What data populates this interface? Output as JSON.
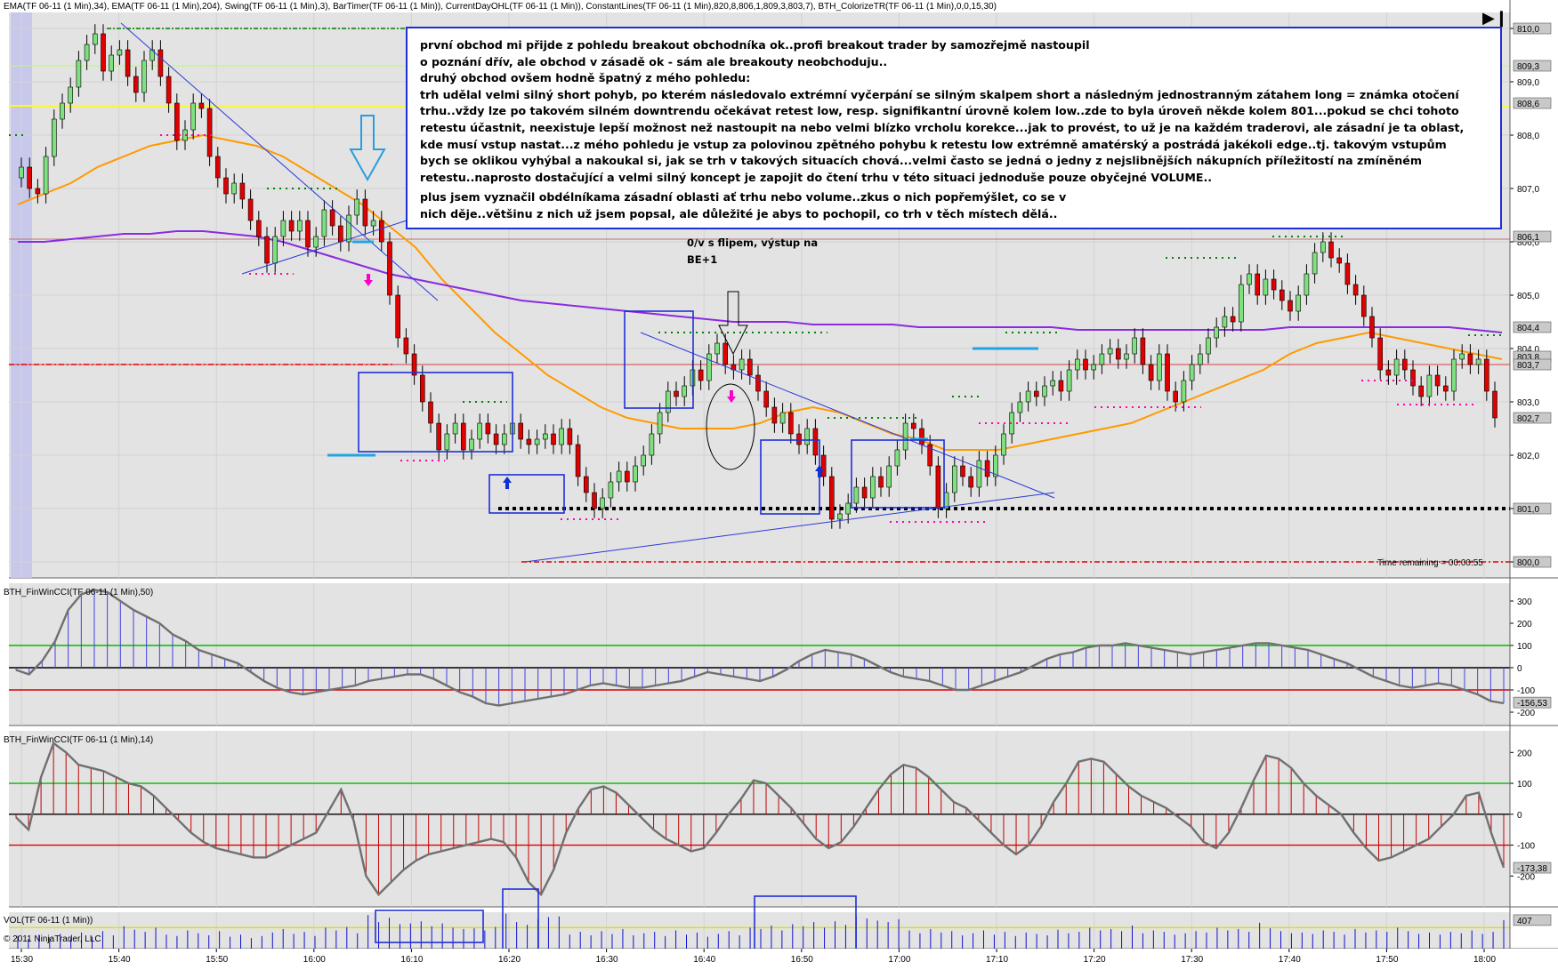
{
  "header": {
    "indicator_line": "EMA(TF 06-11 (1 Min),34), EMA(TF 06-11 (1 Min),204), Swing(TF 06-11 (1 Min),3), BarTimer(TF 06-11 (1 Min)), CurrentDayOHL(TF 06-11 (1 Min)), ConstantLines(TF 06-11 (1 Min),820,8,806,1,809,3,803,7), BTH_ColorizeTR(TF 06-11 (1 Min),0,0,15,30)"
  },
  "note": {
    "lines": [
      "první obchod mi přijde z pohledu breakout obchodníka ok..profi breakout trader by samozřejmě nastoupil",
      "o poznání dřív, ale obchod v zásadě ok - sám ale breakouty neobchoduju..",
      "druhý obchod ovšem hodně špatný z mého pohledu:",
      "trh udělal velmi silný short pohyb, po kterém následovalo extrémní vyčerpání se silným skalpem short a následným jednostranným zátahem long = známka otočení",
      "trhu..vždy lze po takovém silném downtrendu očekávat retest low, resp. signifikantní úrovně kolem low..zde to byla úroveň někde kolem 801...pokud se chci tohoto",
      "retestu účastnit, neexistuje lepší možnost než nastoupit na nebo velmi blízko vrcholu korekce...jak to provést, to už je na každém traderovi, ale zásadní je ta oblast,",
      "kde musí vstup nastat...z mého pohledu je vstup za polovinou zpětného pohybu k retestu low extrémně amatérský a postrádá jakékoli edge..tj. takovým vstupům",
      "bych se oklikou vyhýbal a nakoukal si, jak se trh v takových situacích chová...velmi často se jedná o jedny z nejslibnějších nákupních příležitostí na zmíněném",
      "retestu..naprosto dostačující a velmi silný koncept je zapojit do čtení trhu v této situaci jednoduše pouze obyčejné VOLUME.."
    ],
    "lines2": [
      "plus jsem vyznačil obdélníkama zásadní oblasti ať trhu nebo volume..zkus o nich popřemýšlet, co se v",
      "nich děje..většinu z nich už jsem popsal, ale důležité je abys to pochopil, co trh v těch místech dělá.."
    ]
  },
  "annotation": {
    "line1": "0/v s flipem, výstup na",
    "line2": "BE+1"
  },
  "time_remaining": "Time remaining = 00:00:55",
  "copyright": "© 2011 NinjaTrader, LLC",
  "panels": {
    "cci50_title": "BTH_FinWinCCI(TF 06-11 (1 Min),50)",
    "cci14_title": "BTH_FinWinCCI(TF 06-11 (1 Min),14)",
    "vol_title": "VOL(TF 06-11 (1 Min))"
  },
  "chart_data": [
    {
      "type": "candlestick",
      "ylim": [
        799.7,
        810.3
      ],
      "y_ticks": [
        "810,0",
        "809,0",
        "808,0",
        "807,0",
        "806,0",
        "805,0",
        "804,0",
        "803,0",
        "802,0",
        "801,0",
        "800,0"
      ],
      "y_tick_values": [
        810,
        809,
        808,
        807,
        806,
        805,
        804,
        803,
        802,
        801,
        800
      ],
      "price_badges": [
        {
          "label": "810,0",
          "value": 810.0,
          "color": "#c9c9c9"
        },
        {
          "label": "809,3",
          "value": 809.3,
          "color": "#c9c9c9"
        },
        {
          "label": "808,6",
          "value": 808.6,
          "color": "#c9c9c9"
        },
        {
          "label": "806,1",
          "value": 806.1,
          "color": "#c9c9c9"
        },
        {
          "label": "804,4",
          "value": 804.4,
          "color": "#c9c9c9"
        },
        {
          "label": "803,8",
          "value": 803.85,
          "color": "#c9c9c9"
        },
        {
          "label": "803,7",
          "value": 803.7,
          "color": "#c9c9c9"
        },
        {
          "label": "802,7",
          "value": 802.7,
          "color": "#c9c9c9"
        },
        {
          "label": "801,0",
          "value": 801.0,
          "color": "#c9c9c9"
        },
        {
          "label": "800,0",
          "value": 800.0,
          "color": "#c9c9c9"
        }
      ],
      "x_ticks": [
        "15:30",
        "15:40",
        "15:50",
        "16:00",
        "16:10",
        "16:20",
        "16:30",
        "16:40",
        "16:50",
        "17:00",
        "17:10",
        "17:20",
        "17:30",
        "17:40",
        "17:50",
        "18:00"
      ],
      "bar_colors": {
        "up": "#7fe07f",
        "down": "#e00000"
      },
      "closes": [
        807.4,
        807.0,
        806.9,
        807.6,
        808.3,
        808.6,
        808.9,
        809.4,
        809.7,
        809.9,
        809.2,
        809.5,
        809.6,
        809.1,
        808.8,
        809.4,
        809.6,
        809.1,
        808.6,
        807.9,
        808.1,
        808.6,
        808.5,
        807.6,
        807.2,
        806.9,
        807.1,
        806.8,
        806.4,
        806.1,
        805.6,
        806.1,
        806.4,
        806.2,
        806.4,
        805.9,
        806.1,
        806.6,
        806.3,
        806.0,
        806.5,
        806.8,
        806.3,
        806.4,
        806.0,
        805.0,
        804.2,
        803.9,
        803.5,
        803.0,
        802.6,
        802.1,
        802.4,
        802.6,
        802.1,
        802.3,
        802.6,
        802.4,
        802.2,
        802.4,
        802.6,
        802.3,
        802.2,
        802.3,
        802.4,
        802.2,
        802.5,
        802.2,
        801.6,
        801.3,
        801.0,
        801.2,
        801.5,
        801.7,
        801.5,
        801.8,
        802.0,
        802.4,
        802.8,
        803.2,
        803.1,
        803.3,
        803.6,
        803.4,
        803.9,
        804.1,
        803.7,
        803.6,
        803.8,
        803.5,
        803.2,
        802.9,
        802.6,
        802.8,
        802.4,
        802.2,
        802.5,
        802.0,
        801.6,
        800.8,
        800.9,
        801.1,
        801.4,
        801.2,
        801.6,
        801.4,
        801.8,
        802.1,
        802.6,
        802.5,
        802.2,
        801.8,
        801.0,
        801.3,
        801.8,
        801.6,
        801.4,
        801.9,
        801.6,
        802.0,
        802.4,
        802.8,
        803.0,
        803.2,
        803.1,
        803.3,
        803.4,
        803.2,
        803.6,
        803.8,
        803.6,
        803.7,
        803.9,
        804.0,
        803.8,
        803.9,
        804.2,
        803.7,
        803.4,
        803.9,
        803.2,
        803.0,
        803.4,
        803.7,
        803.9,
        804.2,
        804.4,
        804.6,
        804.5,
        805.2,
        805.4,
        805.0,
        805.3,
        805.1,
        804.9,
        804.7,
        805.0,
        805.4,
        805.8,
        806.0,
        805.7,
        805.6,
        805.2,
        805.0,
        804.6,
        804.2,
        803.6,
        803.5,
        803.8,
        803.6,
        803.3,
        803.1,
        803.5,
        803.3,
        803.2,
        803.8,
        803.9,
        803.7,
        803.8,
        803.2,
        802.7
      ],
      "lines": [
        {
          "name": "EMA 34",
          "color": "#ff9a00",
          "values": [
            806.7,
            806.9,
            807.1,
            807.4,
            807.6,
            807.8,
            807.9,
            808.0,
            807.9,
            807.8,
            807.6,
            807.3,
            807.0,
            806.7,
            806.3,
            805.9,
            805.3,
            804.8,
            804.3,
            803.9,
            803.5,
            803.2,
            802.9,
            802.7,
            802.6,
            802.5,
            802.5,
            802.5,
            802.6,
            802.8,
            802.9,
            802.8,
            802.6,
            802.4,
            802.3,
            802.1,
            802.1,
            802.1,
            802.2,
            802.3,
            802.4,
            802.5,
            802.6,
            802.8,
            803.0,
            803.2,
            803.4,
            803.6,
            803.9,
            804.1,
            804.2,
            804.3,
            804.2,
            804.1,
            804.0,
            803.9,
            803.8
          ]
        },
        {
          "name": "EMA 204",
          "color": "#8a2be2",
          "values": [
            806.0,
            806.0,
            806.05,
            806.1,
            806.15,
            806.15,
            806.2,
            806.2,
            806.15,
            806.1,
            806.0,
            805.85,
            805.7,
            805.55,
            805.4,
            805.3,
            805.2,
            805.1,
            805.0,
            804.9,
            804.85,
            804.8,
            804.75,
            804.7,
            804.65,
            804.6,
            804.55,
            804.5,
            804.5,
            804.5,
            804.45,
            804.45,
            804.45,
            804.45,
            804.4,
            804.4,
            804.4,
            804.4,
            804.4,
            804.4,
            804.35,
            804.35,
            804.35,
            804.35,
            804.35,
            804.35,
            804.35,
            804.35,
            804.4,
            804.4,
            804.4,
            804.4,
            804.4,
            804.4,
            804.4,
            804.35,
            804.3
          ]
        }
      ]
    },
    {
      "type": "bar",
      "name": "CCI 50",
      "ylim": [
        -260,
        380
      ],
      "y_ticks": [
        "300",
        "200",
        "100",
        "0",
        "-100",
        "-200"
      ],
      "y_tick_values": [
        300,
        200,
        100,
        0,
        -100,
        -200
      ],
      "value_badge": "-156,53",
      "value_badge_value": -156.53,
      "hist_color": "#4040e0",
      "levels": [
        {
          "value": 100,
          "color": "#00c000"
        },
        {
          "value": -100,
          "color": "#e00000"
        }
      ],
      "values": [
        -10,
        -30,
        30,
        120,
        260,
        330,
        350,
        340,
        300,
        260,
        230,
        200,
        150,
        120,
        80,
        60,
        40,
        20,
        -20,
        -60,
        -90,
        -110,
        -120,
        -110,
        -100,
        -90,
        -80,
        -60,
        -50,
        -40,
        -30,
        -30,
        -50,
        -80,
        -110,
        -130,
        -160,
        -170,
        -160,
        -150,
        -140,
        -130,
        -120,
        -100,
        -80,
        -70,
        -80,
        -90,
        -90,
        -80,
        -70,
        -60,
        -40,
        -20,
        -30,
        -40,
        -50,
        -60,
        -40,
        -10,
        30,
        60,
        80,
        70,
        60,
        40,
        10,
        -20,
        -40,
        -50,
        -60,
        -80,
        -100,
        -100,
        -80,
        -60,
        -40,
        -20,
        10,
        40,
        60,
        70,
        90,
        100,
        100,
        110,
        100,
        90,
        80,
        70,
        60,
        70,
        80,
        90,
        100,
        110,
        110,
        100,
        90,
        80,
        60,
        40,
        20,
        -10,
        -40,
        -60,
        -80,
        -90,
        -80,
        -70,
        -80,
        -100,
        -120,
        -150,
        -160
      ],
      "volume_values": null
    },
    {
      "type": "bar",
      "name": "CCI 14",
      "ylim": [
        -300,
        270
      ],
      "y_ticks": [
        "200",
        "100",
        "0",
        "-100",
        "-200"
      ],
      "y_tick_values": [
        200,
        100,
        0,
        -100,
        -200
      ],
      "value_badge": "-173,38",
      "value_badge_value": -173.38,
      "hist_color": "#c00000",
      "levels": [
        {
          "value": 100,
          "color": "#00c000"
        },
        {
          "value": -100,
          "color": "#e00000"
        }
      ],
      "values": [
        -10,
        -50,
        120,
        230,
        200,
        160,
        150,
        140,
        120,
        100,
        90,
        60,
        20,
        -20,
        -60,
        -90,
        -110,
        -120,
        -130,
        -140,
        -140,
        -120,
        -100,
        -80,
        -60,
        10,
        80,
        -20,
        -200,
        -260,
        -220,
        -180,
        -150,
        -130,
        -120,
        -110,
        -100,
        -90,
        -80,
        -90,
        -140,
        -220,
        -260,
        -180,
        -60,
        20,
        80,
        90,
        70,
        30,
        -10,
        -50,
        -80,
        -100,
        -120,
        -110,
        -60,
        0,
        50,
        110,
        100,
        60,
        20,
        -30,
        -80,
        -110,
        -90,
        -40,
        20,
        80,
        130,
        160,
        150,
        120,
        80,
        40,
        20,
        -20,
        -60,
        -100,
        -130,
        -100,
        -40,
        40,
        100,
        170,
        180,
        170,
        130,
        90,
        60,
        40,
        20,
        -10,
        -40,
        -90,
        -110,
        -60,
        20,
        110,
        190,
        180,
        150,
        100,
        60,
        30,
        0,
        -60,
        -110,
        -150,
        -140,
        -120,
        -100,
        -80,
        -40,
        0,
        60,
        70,
        -60,
        -173
      ],
      "volume_values": null
    },
    {
      "type": "bar",
      "name": "VOL",
      "ylim": [
        0,
        520
      ],
      "y_ticks": [],
      "y_tick_values": [],
      "value_badge": "407",
      "value_badge_value": 407,
      "hist_color": "#1010d0",
      "levels": [
        {
          "value": 300,
          "color": "#e0e000"
        }
      ],
      "values": [
        180,
        140,
        200,
        160,
        210,
        150,
        230,
        170,
        250,
        190,
        320,
        270,
        240,
        300,
        200,
        180,
        260,
        220,
        190,
        250,
        170,
        200,
        150,
        180,
        230,
        280,
        210,
        240,
        180,
        300,
        260,
        310,
        220,
        480,
        380,
        440,
        350,
        360,
        390,
        320,
        360,
        300,
        280,
        290,
        260,
        310,
        500,
        380,
        340,
        420,
        450,
        460,
        200,
        240,
        190,
        250,
        210,
        280,
        190,
        220,
        240,
        180,
        260,
        200,
        230,
        170,
        210,
        250,
        190,
        300,
        280,
        330,
        260,
        350,
        320,
        380,
        300,
        390,
        340,
        460,
        430,
        400,
        380,
        420,
        260,
        220,
        280,
        230,
        250,
        190,
        220,
        260,
        200,
        240,
        180,
        230,
        210,
        190,
        270,
        220,
        240,
        300,
        260,
        280,
        250,
        330,
        220,
        260,
        240,
        200,
        220,
        250,
        230,
        300,
        260,
        280,
        240,
        370,
        290,
        250,
        220,
        230,
        210,
        260,
        240,
        200,
        280,
        230,
        260,
        240,
        300,
        250,
        210,
        230,
        200,
        240,
        220,
        260,
        210,
        240,
        407
      ]
    }
  ]
}
